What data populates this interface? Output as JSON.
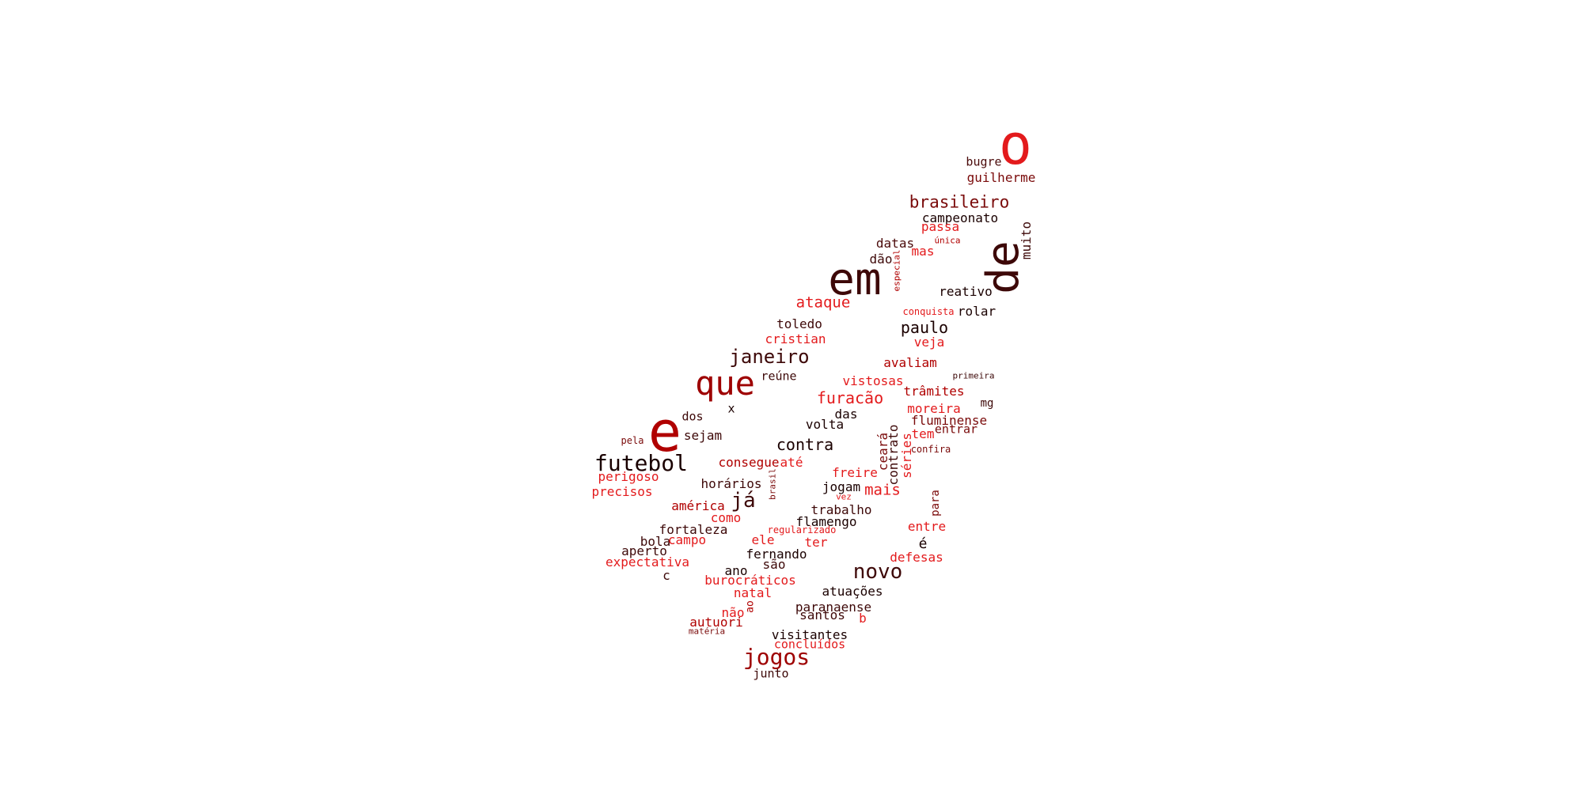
{
  "colors": {
    "background": "#ffffff",
    "bright_red": "#e31a1c",
    "red": "#b00000",
    "dark_red": "#7a0a0a",
    "maroon": "#3d0808"
  },
  "words": [
    {
      "text": "o",
      "color": "#e31a1c"
    },
    {
      "text": "bugre",
      "color": "#4a0a0a"
    },
    {
      "text": "guilherme",
      "color": "#7a0a0a"
    },
    {
      "text": "brasileiro",
      "color": "#7a0a0a"
    },
    {
      "text": "campeonato",
      "color": "#1a0000"
    },
    {
      "text": "passa",
      "color": "#e31a1c"
    },
    {
      "text": "única",
      "color": "#b00000"
    },
    {
      "text": "muito",
      "color": "#3d0808"
    },
    {
      "text": "de",
      "color": "#3d0808"
    },
    {
      "text": "datas",
      "color": "#4a0a0a"
    },
    {
      "text": "mas",
      "color": "#e31a1c"
    },
    {
      "text": "dão",
      "color": "#3d0808"
    },
    {
      "text": "especial",
      "color": "#b00000"
    },
    {
      "text": "em",
      "color": "#3d0808"
    },
    {
      "text": "reativo",
      "color": "#1a0000"
    },
    {
      "text": "ataque",
      "color": "#e31a1c"
    },
    {
      "text": "conquista",
      "color": "#e31a1c"
    },
    {
      "text": "rolar",
      "color": "#1a0000"
    },
    {
      "text": "toledo",
      "color": "#3d0808"
    },
    {
      "text": "paulo",
      "color": "#1a0000"
    },
    {
      "text": "cristian",
      "color": "#e31a1c"
    },
    {
      "text": "veja",
      "color": "#e31a1c"
    },
    {
      "text": "janeiro",
      "color": "#3d0808"
    },
    {
      "text": "avaliam",
      "color": "#b00000"
    },
    {
      "text": "primeira",
      "color": "#3d0808"
    },
    {
      "text": "que",
      "color": "#9e0000"
    },
    {
      "text": "reúne",
      "color": "#3d0808"
    },
    {
      "text": "vistosas",
      "color": "#e31a1c"
    },
    {
      "text": "trâmites",
      "color": "#b00000"
    },
    {
      "text": "furacão",
      "color": "#e31a1c"
    },
    {
      "text": "mg",
      "color": "#3d0808"
    },
    {
      "text": "moreira",
      "color": "#e31a1c"
    },
    {
      "text": "x",
      "color": "#1a0000"
    },
    {
      "text": "dos",
      "color": "#3d0808"
    },
    {
      "text": "das",
      "color": "#1a0000"
    },
    {
      "text": "fluminense",
      "color": "#7a0a0a"
    },
    {
      "text": "e",
      "color": "#b00000"
    },
    {
      "text": "volta",
      "color": "#1a0000"
    },
    {
      "text": "entrar",
      "color": "#7a0a0a"
    },
    {
      "text": "tem",
      "color": "#e31a1c"
    },
    {
      "text": "sejam",
      "color": "#3d0808"
    },
    {
      "text": "pela",
      "color": "#7a0a0a"
    },
    {
      "text": "contra",
      "color": "#1a0000"
    },
    {
      "text": "ceará",
      "color": "#7a0a0a"
    },
    {
      "text": "contrato",
      "color": "#3d0808"
    },
    {
      "text": "séries",
      "color": "#e31a1c"
    },
    {
      "text": "confira",
      "color": "#7a0a0a"
    },
    {
      "text": "futebol",
      "color": "#1a0000"
    },
    {
      "text": "consegue",
      "color": "#b00000"
    },
    {
      "text": "até",
      "color": "#e31a1c"
    },
    {
      "text": "freire",
      "color": "#e31a1c"
    },
    {
      "text": "perigoso",
      "color": "#e31a1c"
    },
    {
      "text": "horários",
      "color": "#3d0808"
    },
    {
      "text": "brasil",
      "color": "#7a0a0a"
    },
    {
      "text": "jogam",
      "color": "#1a0000"
    },
    {
      "text": "mais",
      "color": "#e31a1c"
    },
    {
      "text": "precisos",
      "color": "#e31a1c"
    },
    {
      "text": "já",
      "color": "#3d0808"
    },
    {
      "text": "vez",
      "color": "#e31a1c"
    },
    {
      "text": "para",
      "color": "#7a0a0a"
    },
    {
      "text": "américa",
      "color": "#b00000"
    },
    {
      "text": "trabalho",
      "color": "#3d0808"
    },
    {
      "text": "como",
      "color": "#e31a1c"
    },
    {
      "text": "flamengo",
      "color": "#1a0000"
    },
    {
      "text": "entre",
      "color": "#e31a1c"
    },
    {
      "text": "fortaleza",
      "color": "#3d0808"
    },
    {
      "text": "regularizado",
      "color": "#e31a1c"
    },
    {
      "text": "bola",
      "color": "#3d0808"
    },
    {
      "text": "campo",
      "color": "#e31a1c"
    },
    {
      "text": "ele",
      "color": "#e31a1c"
    },
    {
      "text": "ter",
      "color": "#e31a1c"
    },
    {
      "text": "é",
      "color": "#1a0000"
    },
    {
      "text": "aperto",
      "color": "#3d0808"
    },
    {
      "text": "fernando",
      "color": "#1a0000"
    },
    {
      "text": "defesas",
      "color": "#e31a1c"
    },
    {
      "text": "expectativa",
      "color": "#e31a1c"
    },
    {
      "text": "são",
      "color": "#3d0808"
    },
    {
      "text": "novo",
      "color": "#3d0808"
    },
    {
      "text": "ano",
      "color": "#1a0000"
    },
    {
      "text": "c",
      "color": "#3d0808"
    },
    {
      "text": "burocráticos",
      "color": "#e31a1c"
    },
    {
      "text": "atuações",
      "color": "#1a0000"
    },
    {
      "text": "natal",
      "color": "#e31a1c"
    },
    {
      "text": "ao",
      "color": "#b00000"
    },
    {
      "text": "paranaense",
      "color": "#3d0808"
    },
    {
      "text": "não",
      "color": "#e31a1c"
    },
    {
      "text": "santos",
      "color": "#3d0808"
    },
    {
      "text": "b",
      "color": "#e31a1c"
    },
    {
      "text": "autuori",
      "color": "#b00000"
    },
    {
      "text": "matéria",
      "color": "#7a0a0a"
    },
    {
      "text": "visitantes",
      "color": "#1a0000"
    },
    {
      "text": "concluídos",
      "color": "#e31a1c"
    },
    {
      "text": "jogos",
      "color": "#9e0000"
    },
    {
      "text": "junto",
      "color": "#3d0808"
    }
  ]
}
